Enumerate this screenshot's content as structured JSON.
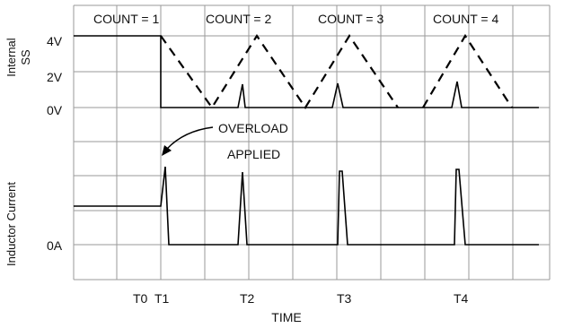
{
  "chart_data": {
    "type": "line",
    "x_axis": {
      "label": "TIME",
      "tick_labels": [
        "T0",
        "T1",
        "T2",
        "T3",
        "T4"
      ]
    },
    "panels": [
      {
        "name": "internal-ss",
        "ylabel_lines": [
          "Internal",
          "SS"
        ],
        "y_tick_labels": [
          "4V",
          "2V",
          "0V"
        ],
        "count_labels": [
          "COUNT = 1",
          "COUNT = 2",
          "COUNT = 3",
          "COUNT = 4"
        ]
      },
      {
        "name": "inductor-current",
        "ylabel": "Inductor Current",
        "y_tick_labels": [
          "0A"
        ]
      }
    ],
    "annotation": {
      "lines": [
        "OVERLOAD",
        "APPLIED"
      ]
    },
    "grid": true
  }
}
